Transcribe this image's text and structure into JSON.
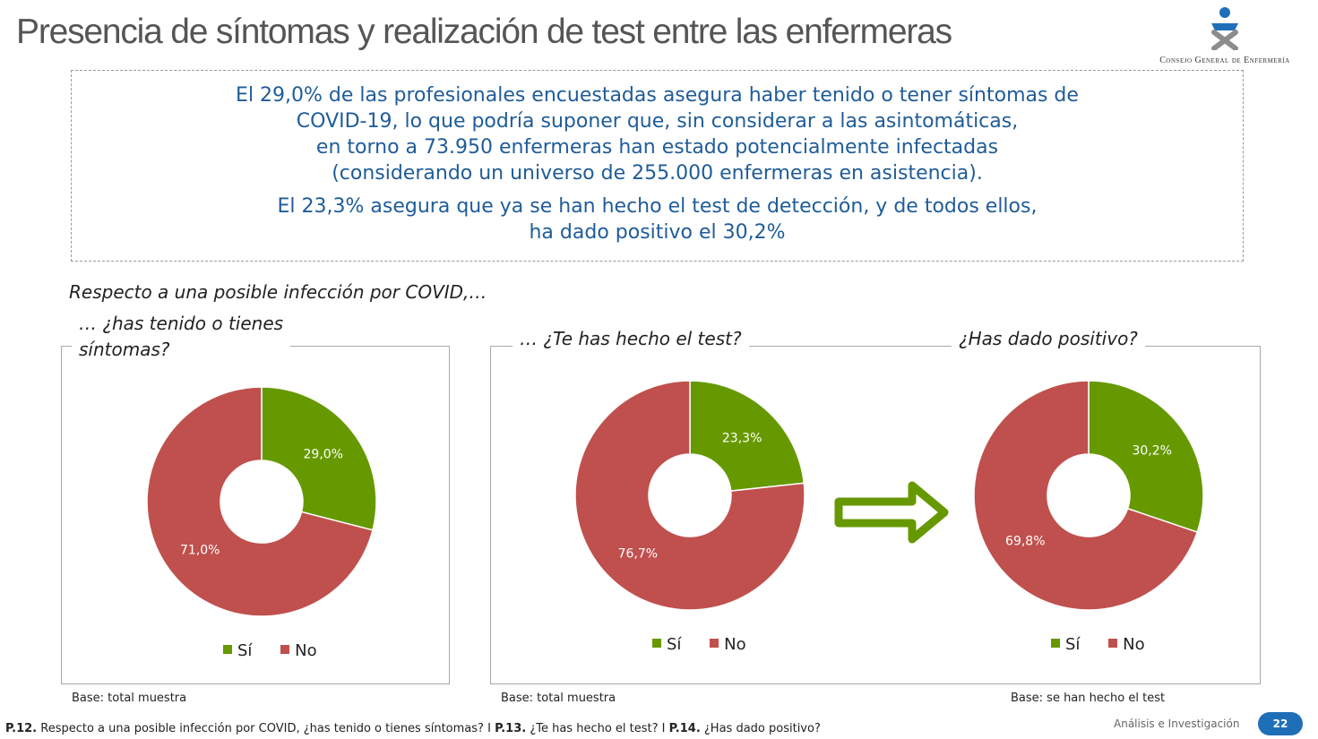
{
  "page_title": "Presencia de síntomas y realización de test entre las enfermeras",
  "logo": {
    "name": "Consejo General de Enfermería"
  },
  "summary": {
    "paragraph1": [
      "El 29,0% de las profesionales encuestadas asegura haber tenido o tener síntomas de",
      "COVID-19, lo que podría suponer que, sin considerar a las asintomáticas,",
      "en torno a 73.950 enfermeras han estado potencialmente infectadas",
      "(considerando un universo de 255.000 enfermeras en asistencia)."
    ],
    "paragraph2": [
      "El 23,3% asegura que ya se han hecho el test de detección, y de todos ellos,",
      "ha dado positivo el 30,2%"
    ]
  },
  "intro_text": "Respecto a una posible infección por COVID,…",
  "colors": {
    "si": "#669900",
    "no": "#c0504d",
    "accent": "#1f5c99",
    "arrow_fill": "#669900"
  },
  "legend": {
    "si": "Sí",
    "no": "No"
  },
  "chart_data": [
    {
      "type": "pie",
      "title": [
        "… ¿has tenido o tienes",
        "síntomas?"
      ],
      "categories": [
        "Sí",
        "No"
      ],
      "values": [
        29.0,
        71.0
      ],
      "labels": [
        "29,0%",
        "71,0%"
      ],
      "base": "Base: total muestra"
    },
    {
      "type": "pie",
      "title": [
        "… ¿Te has hecho el test?"
      ],
      "categories": [
        "Sí",
        "No"
      ],
      "values": [
        23.3,
        76.7
      ],
      "labels": [
        "23,3%",
        "76,7%"
      ],
      "base": "Base: total muestra"
    },
    {
      "type": "pie",
      "title": [
        "¿Has dado positivo?"
      ],
      "categories": [
        "Sí",
        "No"
      ],
      "values": [
        30.2,
        69.8
      ],
      "labels": [
        "30,2%",
        "69,8%"
      ],
      "base": "Base: se han hecho el test"
    }
  ],
  "footnote": {
    "q1_code": "P.12.",
    "q1_text": "Respecto a una posible infección por COVID, ¿has tenido o tienes síntomas?",
    "sep1": "I",
    "q2_code": "P.13.",
    "q2_text": "¿Te has hecho el test?",
    "sep2": "I",
    "q3_code": "P.14.",
    "q3_text": "¿Has dado positivo?"
  },
  "brand_text": "Análisis e Investigación",
  "page_number": "22"
}
